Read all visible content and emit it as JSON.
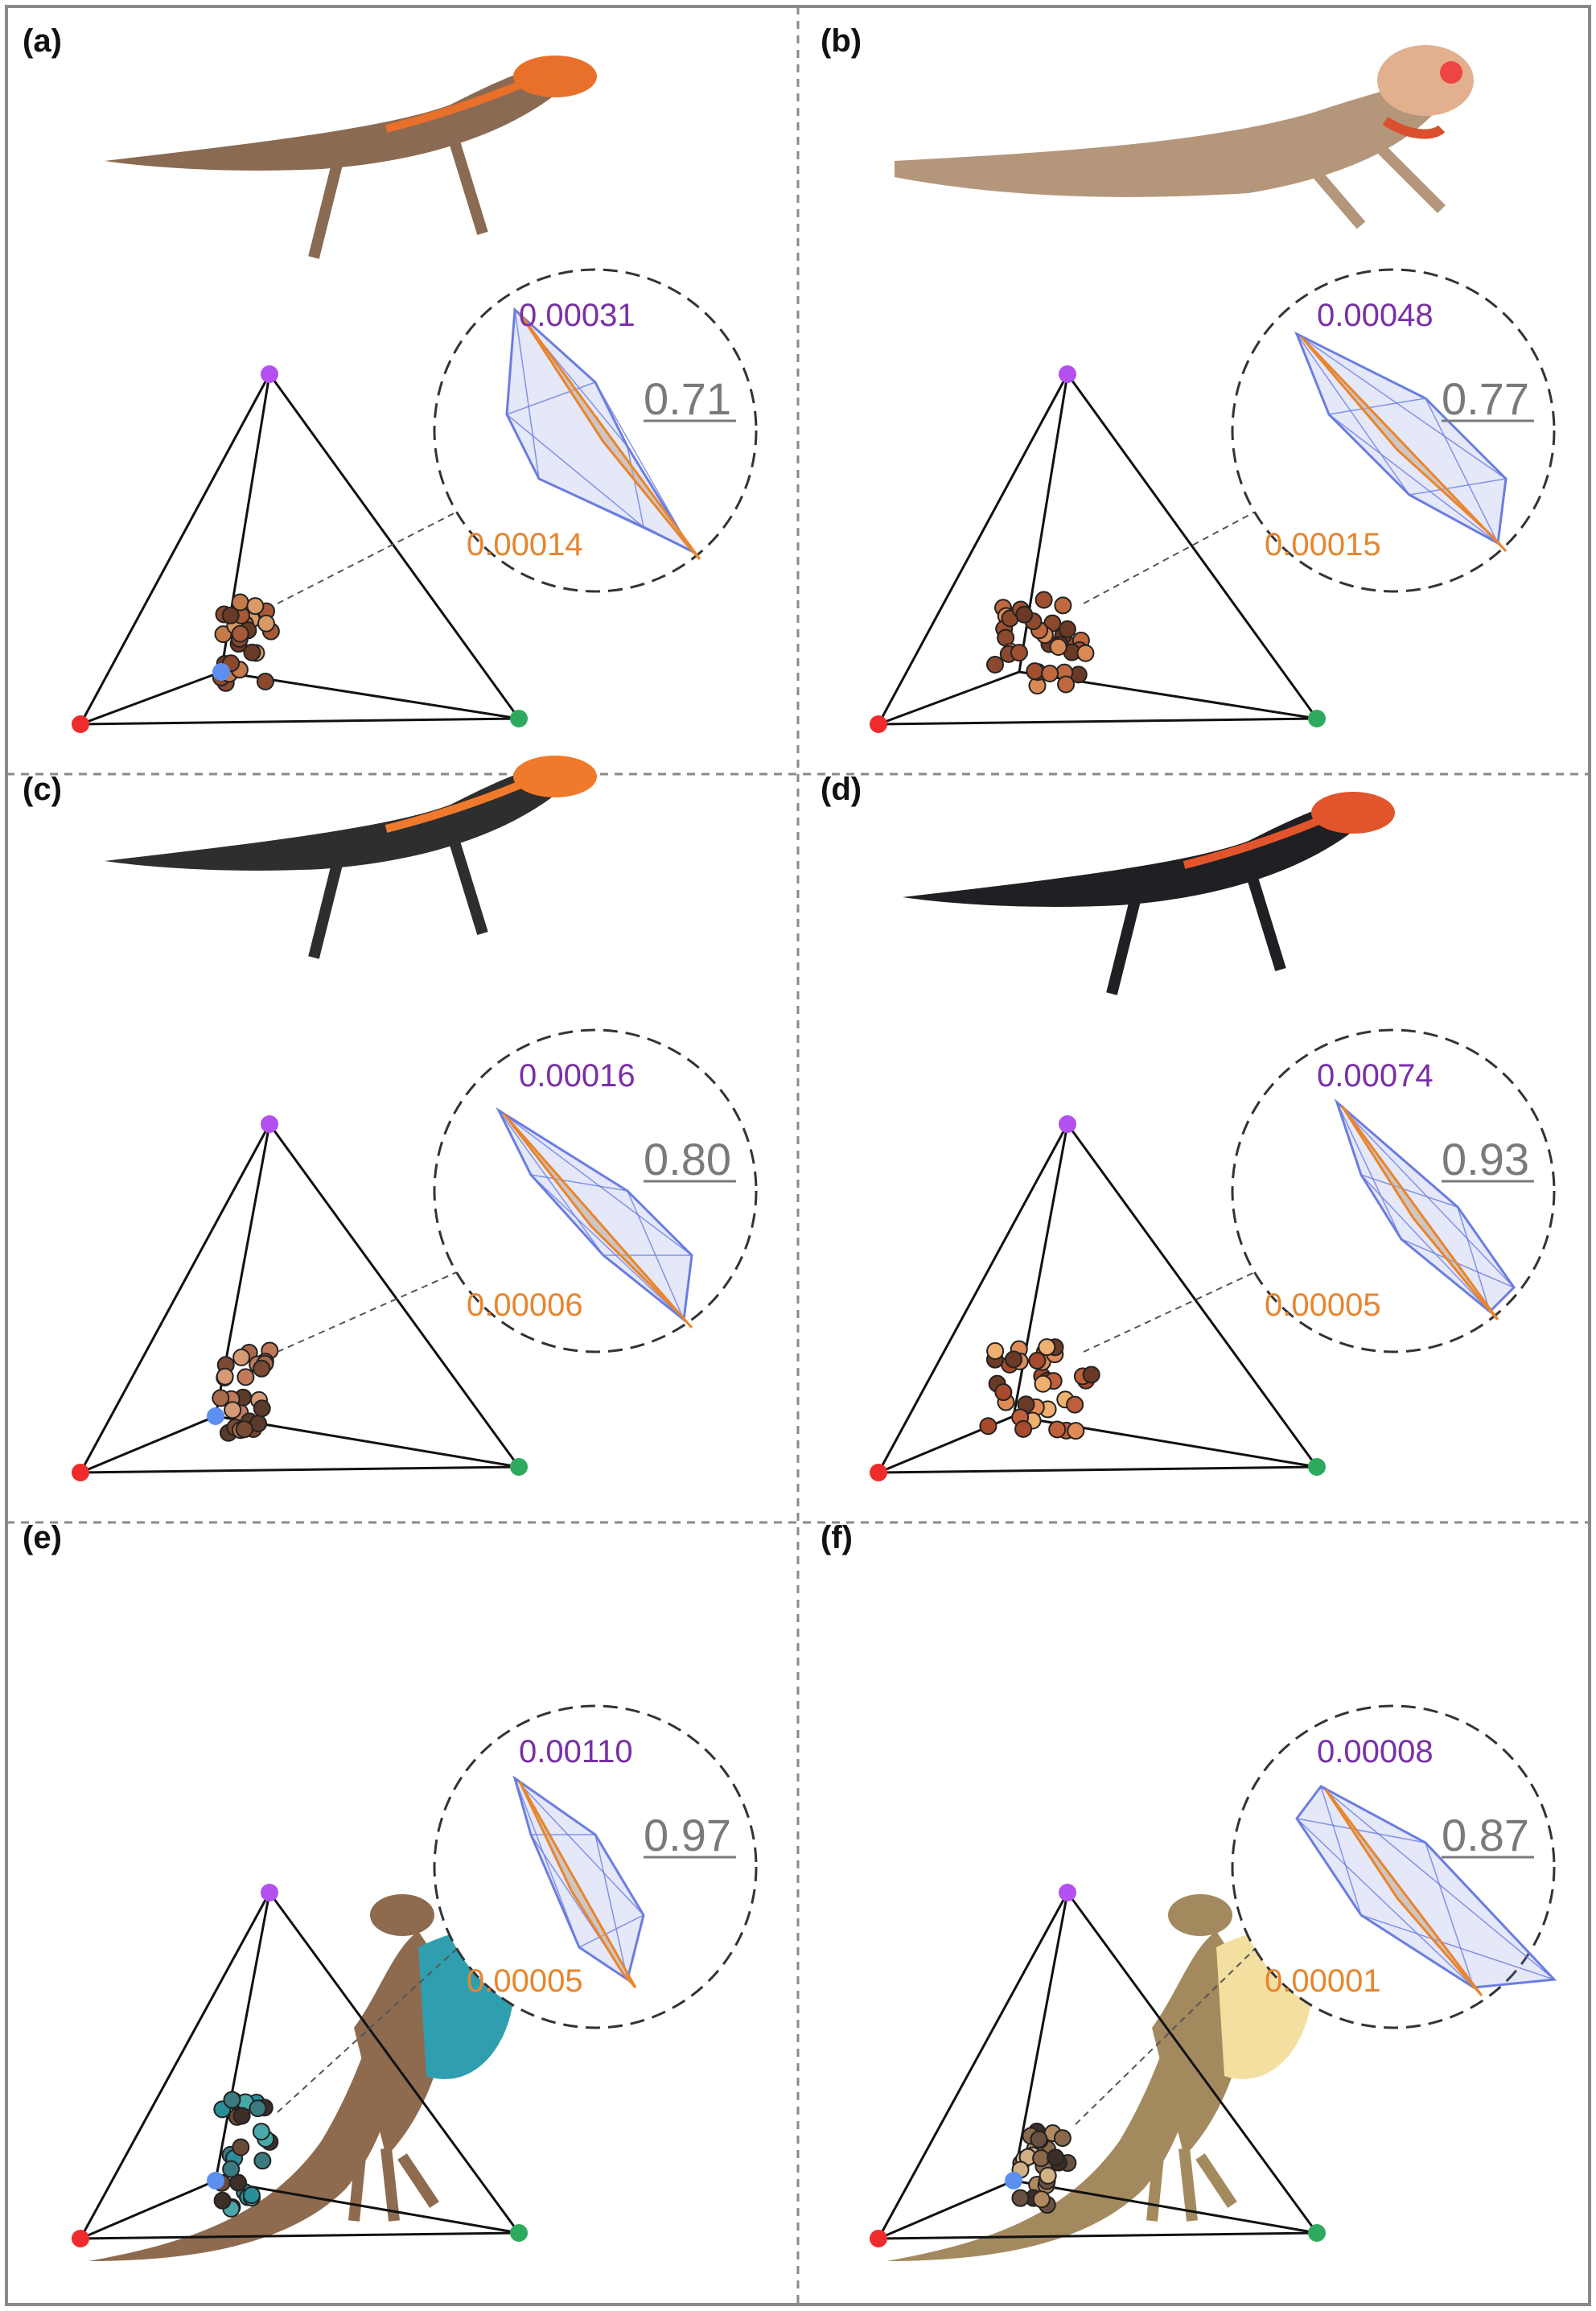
{
  "figure": {
    "panels": [
      {
        "label": "(a)",
        "purple_volume": "0.00031",
        "overlap": "0.71",
        "orange_volume": "0.00014",
        "lizard": {
          "body": "#8a6a52",
          "head": "#e8702a",
          "accent": "#e8702a",
          "dewlap": null
        }
      },
      {
        "label": "(b)",
        "purple_volume": "0.00048",
        "overlap": "0.77",
        "orange_volume": "0.00015",
        "lizard": {
          "body": "#b4967a",
          "head": "#e2b08e",
          "accent": "#d9502e",
          "dewlap": null
        }
      },
      {
        "label": "(c)",
        "purple_volume": "0.00016",
        "overlap": "0.80",
        "orange_volume": "0.00006",
        "lizard": {
          "body": "#2e2e2e",
          "head": "#f07a2c",
          "accent": "#f07a2c",
          "dewlap": null
        }
      },
      {
        "label": "(d)",
        "purple_volume": "0.00074",
        "overlap": "0.93",
        "orange_volume": "0.00005",
        "lizard": {
          "body": "#1f1f24",
          "head": "#e2552c",
          "accent": "#e2552c",
          "dewlap": null
        }
      },
      {
        "label": "(e)",
        "purple_volume": "0.00110",
        "overlap": "0.97",
        "orange_volume": "0.00005",
        "lizard": {
          "body": "#8e6a4e",
          "head": "#8e6a4e",
          "accent": "#2f8fa0",
          "dewlap": "#2f9fb0"
        }
      },
      {
        "label": "(f)",
        "purple_volume": "0.00008",
        "overlap": "0.87",
        "orange_volume": "0.00001",
        "lizard": {
          "body": "#a38a5e",
          "head": "#a38a5e",
          "accent": "#f3dfa0",
          "dewlap": "#f3dfa0"
        }
      }
    ],
    "colors": {
      "vertex_uv": "#b44ff0",
      "vertex_short": "#5c8ff0",
      "vertex_medium": "#2eaa5e",
      "vertex_long": "#ef2b2b",
      "hull_blue": "#6b7de0",
      "hull_orange": "#e8852e",
      "purple_text": "#7a2fa6",
      "orange_text": "#e8852e",
      "overlap_text": "#7a7a7a"
    }
  }
}
